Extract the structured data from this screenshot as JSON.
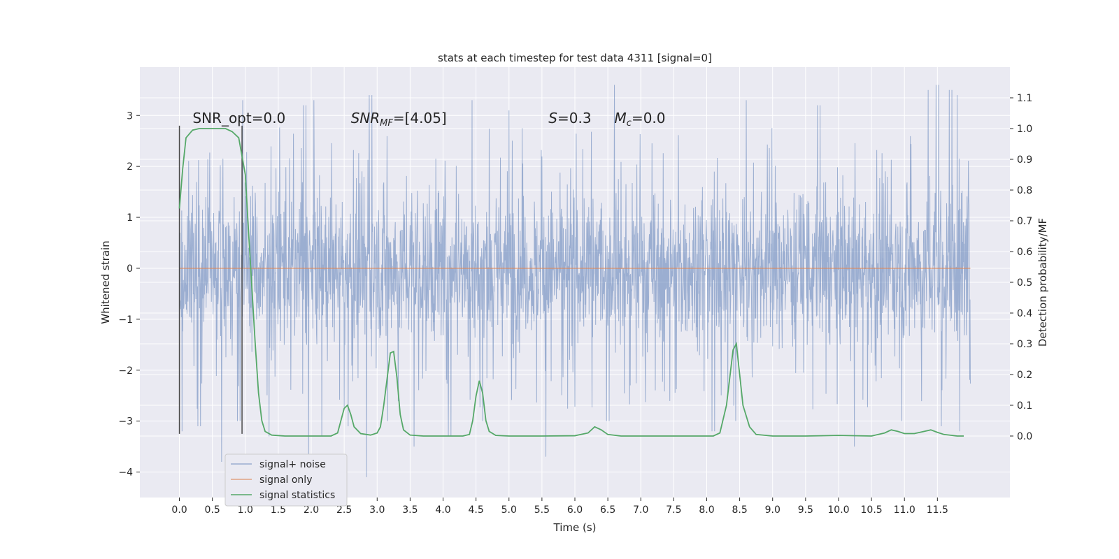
{
  "chart_data": {
    "type": "line",
    "title": "stats at each timestep for test data 4311 [signal=0]",
    "xlabel": "Time (s)",
    "ylabel": "Whitened strain",
    "ylabel_right": "Detection probability/MF",
    "xlim": [
      -0.6,
      12.6
    ],
    "ylim": [
      -4.5,
      3.95
    ],
    "ylim_right": [
      -0.2,
      1.2
    ],
    "x_ticks": [
      "0.0",
      "0.5",
      "1.0",
      "1.5",
      "2.0",
      "2.5",
      "3.0",
      "3.5",
      "4.0",
      "4.5",
      "5.0",
      "5.5",
      "6.0",
      "6.5",
      "7.0",
      "7.5",
      "8.0",
      "8.5",
      "9.0",
      "9.5",
      "10.0",
      "10.5",
      "11.0",
      "11.5"
    ],
    "y_ticks": [
      "3",
      "2",
      "1",
      "0",
      "−1",
      "−2",
      "−3",
      "−4"
    ],
    "y_ticks_right": [
      "1.1",
      "1.0",
      "0.9",
      "0.8",
      "0.7",
      "0.6",
      "0.5",
      "0.4",
      "0.3",
      "0.2",
      "0.1",
      "0.0"
    ],
    "grid": true,
    "legend_position": "lower-left",
    "series": [
      {
        "name": "signal+ noise",
        "color": "#4c72b0",
        "x_range": [
          0.0,
          12.0
        ],
        "envelope_typical": [
          -2.2,
          2.2
        ],
        "spikes": [
          [
            0.04,
            -3.2
          ],
          [
            0.3,
            -3.1
          ],
          [
            0.65,
            -3.8
          ],
          [
            0.9,
            -3.0
          ],
          [
            1.35,
            -3.3
          ],
          [
            1.95,
            -3.7
          ],
          [
            2.15,
            -3.3
          ],
          [
            2.55,
            -3.1
          ],
          [
            2.85,
            -4.1
          ],
          [
            3.15,
            -3.0
          ],
          [
            3.55,
            -3.5
          ],
          [
            4.1,
            -3.3
          ],
          [
            4.6,
            -3.0
          ],
          [
            5.55,
            -3.7
          ],
          [
            6.5,
            -3.0
          ],
          [
            8.1,
            -3.2
          ],
          [
            8.45,
            -3.0
          ],
          [
            10.25,
            -3.5
          ],
          [
            10.95,
            -3.0
          ],
          [
            11.55,
            -3.1
          ],
          [
            11.85,
            -3.2
          ],
          [
            0.95,
            3.3
          ],
          [
            1.9,
            3.2
          ],
          [
            2.05,
            3.3
          ],
          [
            2.9,
            3.4
          ],
          [
            4.45,
            3.3
          ],
          [
            5.0,
            3.1
          ],
          [
            6.6,
            3.6
          ],
          [
            8.6,
            3.3
          ],
          [
            9.7,
            3.2
          ],
          [
            11.35,
            3.5
          ],
          [
            11.5,
            3.6
          ],
          [
            11.7,
            3.5
          ],
          [
            11.82,
            3.4
          ]
        ]
      },
      {
        "name": "signal only",
        "color": "#dd8452",
        "values": [
          [
            0.0,
            0.0
          ],
          [
            12.0,
            0.0
          ]
        ]
      },
      {
        "name": "signal statistics",
        "color": "#55a868",
        "axis": "right",
        "values": [
          [
            0.0,
            0.74
          ],
          [
            0.05,
            0.87
          ],
          [
            0.1,
            0.97
          ],
          [
            0.2,
            0.995
          ],
          [
            0.3,
            1.0
          ],
          [
            0.5,
            1.0
          ],
          [
            0.7,
            1.0
          ],
          [
            0.8,
            0.99
          ],
          [
            0.9,
            0.97
          ],
          [
            1.0,
            0.85
          ],
          [
            1.05,
            0.66
          ],
          [
            1.1,
            0.48
          ],
          [
            1.15,
            0.3
          ],
          [
            1.2,
            0.14
          ],
          [
            1.25,
            0.05
          ],
          [
            1.3,
            0.015
          ],
          [
            1.4,
            0.003
          ],
          [
            1.6,
            0.0
          ],
          [
            2.0,
            0.0
          ],
          [
            2.3,
            0.0
          ],
          [
            2.4,
            0.01
          ],
          [
            2.45,
            0.05
          ],
          [
            2.5,
            0.09
          ],
          [
            2.55,
            0.1
          ],
          [
            2.6,
            0.07
          ],
          [
            2.65,
            0.03
          ],
          [
            2.75,
            0.008
          ],
          [
            2.9,
            0.003
          ],
          [
            3.0,
            0.01
          ],
          [
            3.05,
            0.03
          ],
          [
            3.1,
            0.1
          ],
          [
            3.2,
            0.27
          ],
          [
            3.25,
            0.275
          ],
          [
            3.3,
            0.19
          ],
          [
            3.35,
            0.07
          ],
          [
            3.4,
            0.02
          ],
          [
            3.5,
            0.003
          ],
          [
            3.7,
            0.0
          ],
          [
            4.0,
            0.0
          ],
          [
            4.3,
            0.0
          ],
          [
            4.4,
            0.005
          ],
          [
            4.45,
            0.05
          ],
          [
            4.5,
            0.13
          ],
          [
            4.55,
            0.18
          ],
          [
            4.6,
            0.14
          ],
          [
            4.65,
            0.05
          ],
          [
            4.7,
            0.015
          ],
          [
            4.8,
            0.002
          ],
          [
            5.0,
            0.0
          ],
          [
            5.5,
            0.0
          ],
          [
            6.0,
            0.001
          ],
          [
            6.2,
            0.01
          ],
          [
            6.3,
            0.03
          ],
          [
            6.4,
            0.02
          ],
          [
            6.5,
            0.005
          ],
          [
            6.7,
            0.0
          ],
          [
            7.5,
            0.0
          ],
          [
            8.1,
            0.0
          ],
          [
            8.2,
            0.01
          ],
          [
            8.3,
            0.1
          ],
          [
            8.4,
            0.28
          ],
          [
            8.45,
            0.3
          ],
          [
            8.5,
            0.2
          ],
          [
            8.55,
            0.1
          ],
          [
            8.65,
            0.03
          ],
          [
            8.75,
            0.005
          ],
          [
            9.0,
            0.0
          ],
          [
            9.5,
            0.0
          ],
          [
            10.0,
            0.002
          ],
          [
            10.5,
            0.0
          ],
          [
            10.7,
            0.01
          ],
          [
            10.8,
            0.02
          ],
          [
            10.9,
            0.015
          ],
          [
            11.0,
            0.008
          ],
          [
            11.15,
            0.008
          ],
          [
            11.3,
            0.015
          ],
          [
            11.4,
            0.02
          ],
          [
            11.5,
            0.012
          ],
          [
            11.6,
            0.005
          ],
          [
            11.8,
            0.0
          ],
          [
            11.9,
            0.0
          ]
        ]
      }
    ],
    "vertical_markers": [
      {
        "x": 0.0,
        "ymin": -3.25,
        "ymax": 2.8,
        "color": "#4a4a4a"
      },
      {
        "x": 0.95,
        "ymin": -3.25,
        "ymax": 2.8,
        "color": "#4a4a4a"
      }
    ],
    "annotations": [
      {
        "text": "SNR_opt=0.0",
        "x": 0.2,
        "y": 2.85
      },
      {
        "text": "SNR_MF=[4.05]",
        "x": 2.6,
        "y": 2.85
      },
      {
        "text": "S=0.3",
        "x": 5.6,
        "y": 2.85
      },
      {
        "text": "M_c=0.0",
        "x": 6.6,
        "y": 2.85
      }
    ]
  },
  "colors": {
    "plot_background": "#eaeaf2",
    "grid": "#ffffff",
    "legend_background": "#eaeaf2",
    "legend_border": "#cccccc"
  }
}
